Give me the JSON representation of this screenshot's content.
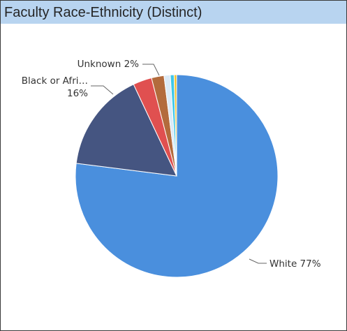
{
  "visual": {
    "title": "Faculty Race-Ethnicity (Distinct)"
  },
  "chart_data": {
    "type": "pie",
    "title": "Faculty Race-Ethnicity (Distinct)",
    "start_angle_deg": 0,
    "direction": "clockwise",
    "slices": [
      {
        "name": "White",
        "value": 77,
        "color": "#4a8fdd"
      },
      {
        "name": "Black or Afri…",
        "value": 16,
        "color": "#455581"
      },
      {
        "name": "",
        "value": 3,
        "color": "#e05050"
      },
      {
        "name": "Unknown",
        "value": 2,
        "color": "#b36b3c"
      },
      {
        "name": "",
        "value": 1,
        "color": "#dceaf6"
      },
      {
        "name": "",
        "value": 0.6,
        "color": "#3fc7e8"
      },
      {
        "name": "",
        "value": 0.4,
        "color": "#f2c12e"
      }
    ],
    "data_labels": [
      {
        "text": "White 77%"
      },
      {
        "text": "Black or Afri…"
      },
      {
        "text": "16%"
      },
      {
        "text": "Unknown 2%"
      }
    ]
  }
}
